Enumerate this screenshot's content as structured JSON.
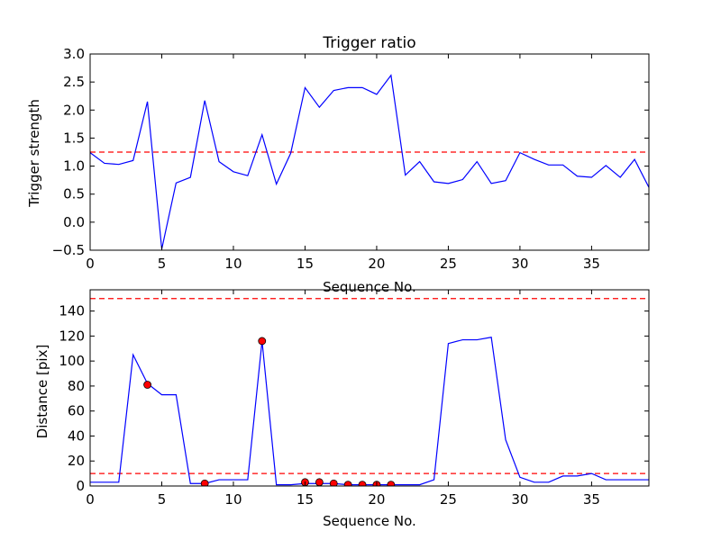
{
  "chart_data": [
    {
      "type": "line",
      "title": "Trigger ratio",
      "xlabel": "Sequence No.",
      "ylabel": "Trigger strength",
      "xlim": [
        0,
        39
      ],
      "ylim": [
        -0.5,
        3.0
      ],
      "xticks": [
        "0",
        "5",
        "10",
        "15",
        "20",
        "25",
        "30",
        "35"
      ],
      "yticks": [
        "−0.5",
        "0.0",
        "0.5",
        "1.0",
        "1.5",
        "2.0",
        "2.5",
        "3.0"
      ],
      "grid": false,
      "series": [
        {
          "color": "#0000ff",
          "x": [
            0,
            1,
            2,
            3,
            4,
            5,
            6,
            7,
            8,
            9,
            10,
            11,
            12,
            13,
            14,
            15,
            16,
            17,
            18,
            19,
            20,
            21,
            22,
            23,
            24,
            25,
            26,
            27,
            28,
            29,
            30,
            31,
            32,
            33,
            34,
            35,
            36,
            37,
            38,
            39
          ],
          "y": [
            1.24,
            1.05,
            1.03,
            1.1,
            2.15,
            -0.48,
            0.7,
            0.8,
            2.17,
            1.08,
            0.9,
            0.83,
            1.56,
            0.68,
            1.23,
            2.4,
            2.05,
            2.35,
            2.4,
            2.4,
            2.28,
            2.62,
            0.84,
            1.08,
            0.72,
            0.69,
            0.76,
            1.08,
            0.69,
            0.74,
            1.24,
            1.12,
            1.02,
            1.02,
            0.82,
            0.8,
            1.01,
            0.8,
            1.12,
            0.62
          ]
        }
      ],
      "reference_lines": [
        {
          "y": 1.25,
          "color": "#ff0000",
          "style": "dashed"
        }
      ]
    },
    {
      "type": "line",
      "title": "",
      "xlabel": "Sequence No.",
      "ylabel": "Distance [pix]",
      "xlim": [
        0,
        39
      ],
      "ylim": [
        0,
        157
      ],
      "xticks": [
        "0",
        "5",
        "10",
        "15",
        "20",
        "25",
        "30",
        "35"
      ],
      "yticks": [
        "0",
        "20",
        "40",
        "60",
        "80",
        "100",
        "120",
        "140"
      ],
      "grid": false,
      "series": [
        {
          "color": "#0000ff",
          "x": [
            0,
            1,
            2,
            3,
            4,
            5,
            6,
            7,
            8,
            9,
            10,
            11,
            12,
            13,
            14,
            15,
            16,
            17,
            18,
            19,
            20,
            21,
            22,
            23,
            24,
            25,
            26,
            27,
            28,
            29,
            30,
            31,
            32,
            33,
            34,
            35,
            36,
            37,
            38,
            39
          ],
          "y": [
            3,
            3,
            3,
            105,
            82,
            73,
            73,
            2,
            2,
            5,
            5,
            5,
            116,
            1,
            1,
            2,
            2,
            2,
            1,
            1,
            1,
            1,
            1,
            1,
            5,
            114,
            117,
            117,
            119,
            37,
            7,
            3,
            3,
            8,
            8,
            10,
            5,
            5,
            5,
            5
          ]
        }
      ],
      "markers": {
        "color": "#ff0000",
        "x": [
          4,
          8,
          12,
          15,
          16,
          17,
          18,
          19,
          20,
          21
        ],
        "y": [
          81,
          2,
          116,
          3,
          3,
          2,
          1,
          1,
          1,
          1
        ]
      },
      "reference_lines": [
        {
          "y": 150,
          "color": "#ff0000",
          "style": "dashed"
        },
        {
          "y": 10,
          "color": "#ff0000",
          "style": "dashed"
        }
      ]
    }
  ]
}
